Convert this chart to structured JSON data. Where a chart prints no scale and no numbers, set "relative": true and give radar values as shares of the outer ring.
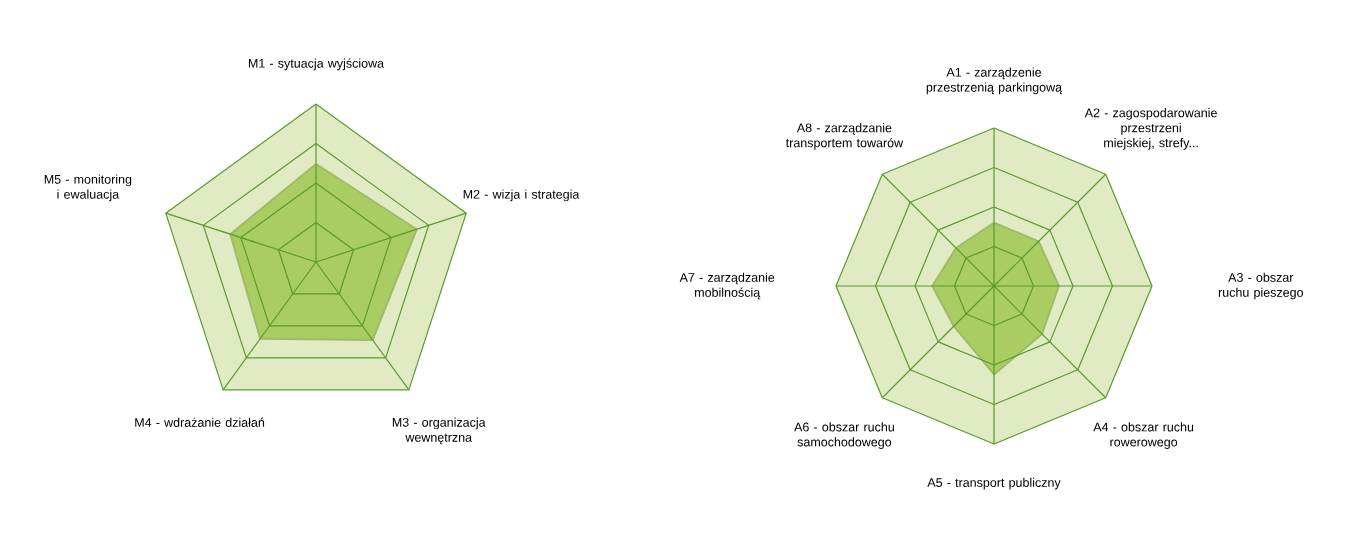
{
  "chart_data": [
    {
      "type": "radar",
      "relative": true,
      "grid": true,
      "categories": [
        "M1 - sytuacja wyjściowa",
        "M2 - wizja i strategia",
        "M3 - organizacja wewnętrzna",
        "M4 - wdrażanie działań",
        "M5 - monitoring i ewaluacja"
      ],
      "series": [
        {
          "color": "#a9cd63",
          "values": [
            0.62,
            0.67,
            0.61,
            0.6,
            0.57
          ]
        }
      ]
    },
    {
      "type": "radar",
      "relative": true,
      "grid": true,
      "categories": [
        "A1 - zarządzenie przestrzenią parkingową",
        "A2 - zagospodarowanie przestrzeni miejskiej, strefy...",
        "A3 - obszar ruchu pieszego",
        "A4 - obszar ruchu rowerowego",
        "A5 - transport publiczny",
        "A6 - obszar ruchu samochodowego",
        "A7 - zarządzanie mobilnością",
        "A8 - zarządzanie transportem towarów"
      ],
      "series": [
        {
          "color": "#a9cd63",
          "values": [
            0.4,
            0.4,
            0.41,
            0.43,
            0.56,
            0.36,
            0.39,
            0.34
          ]
        }
      ]
    }
  ]
}
